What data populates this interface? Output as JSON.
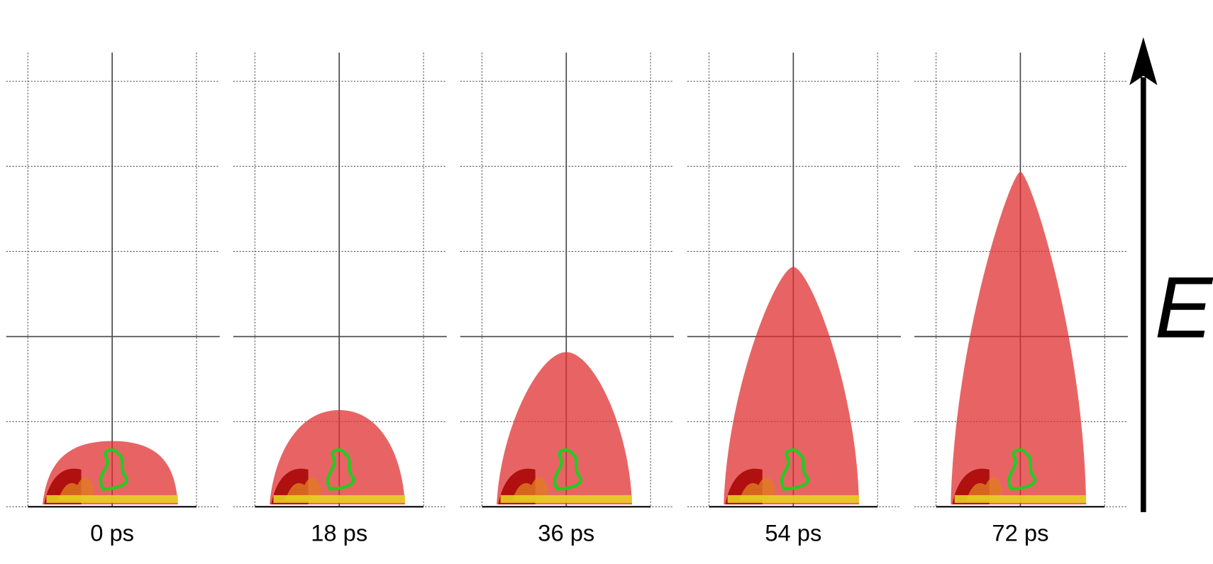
{
  "panels": [
    {
      "label": "0 ps"
    },
    {
      "label": "18 ps"
    },
    {
      "label": "36 ps"
    },
    {
      "label": "54 ps"
    },
    {
      "label": "72 ps"
    }
  ],
  "field_label": "E"
}
